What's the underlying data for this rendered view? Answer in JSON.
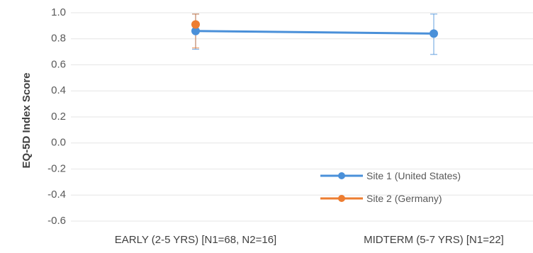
{
  "chart_data": {
    "type": "line",
    "title": "",
    "xlabel": "",
    "ylabel": "EQ-5D Index Score",
    "ylim": [
      -0.6,
      1.0
    ],
    "ytick_step": 0.2,
    "y_ticks": [
      "1.0",
      "0.8",
      "0.6",
      "0.4",
      "0.2",
      "0.0",
      "-0.2",
      "-0.4",
      "-0.6"
    ],
    "grid": true,
    "legend_position": "bottom-right",
    "categories": [
      "EARLY (2-5 YRS) [N1=68, N2=16]",
      "MIDTERM (5-7 YRS) [N1=22]"
    ],
    "series": [
      {
        "name": "Site 1 (United States)",
        "color": "#4a90d9",
        "values": [
          0.86,
          0.84
        ],
        "error": [
          [
            0.72,
            0.99
          ],
          [
            0.68,
            0.99
          ]
        ]
      },
      {
        "name": "Site 2 (Germany)",
        "color": "#ed7d31",
        "values": [
          0.91,
          null
        ],
        "error": [
          [
            0.73,
            0.99
          ],
          null
        ]
      }
    ]
  }
}
